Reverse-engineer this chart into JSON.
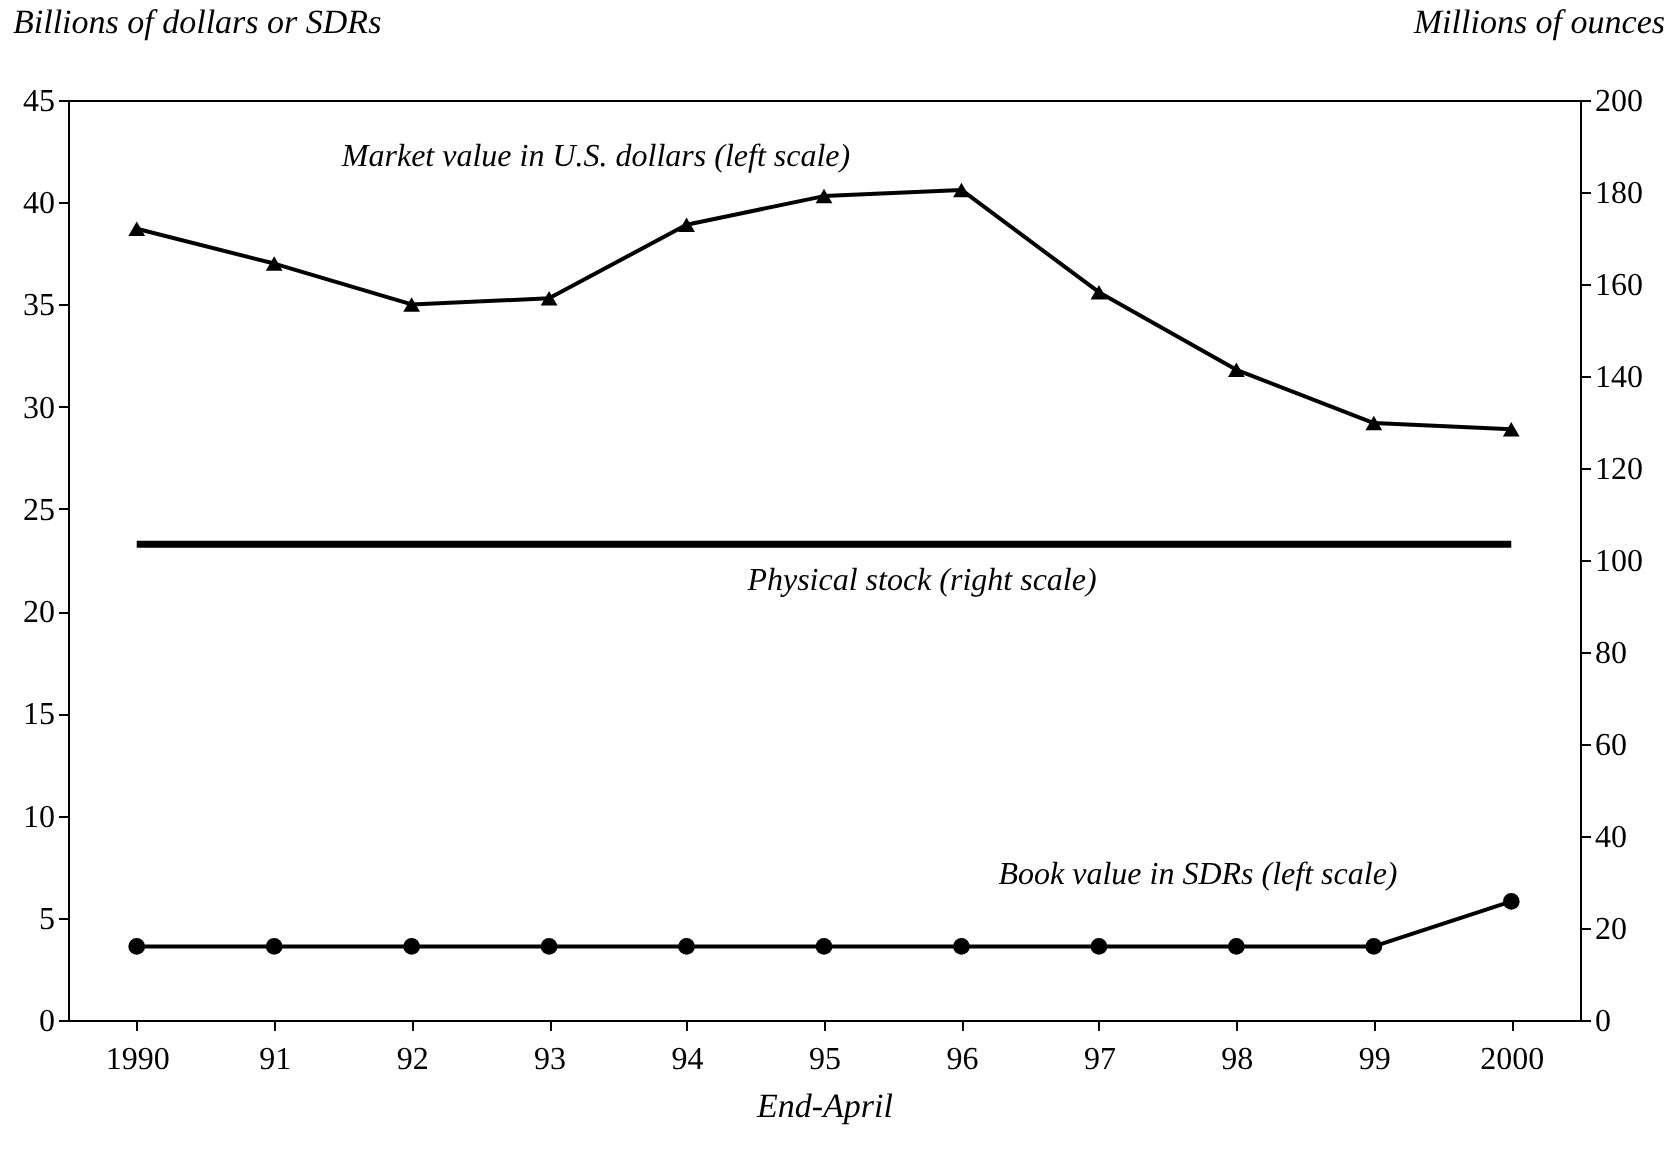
{
  "chart_data": {
    "type": "line",
    "xlabel": "End-April",
    "ylabel": "Billions of dollars or SDRs",
    "y2label": "Millions of ounces",
    "categories": [
      "1990",
      "91",
      "92",
      "93",
      "94",
      "95",
      "96",
      "97",
      "98",
      "99",
      "2000"
    ],
    "series": [
      {
        "color": "#000000",
        "marker": "triangle",
        "values": [
          38.7,
          37.0,
          35.0,
          35.3,
          38.9,
          40.3,
          40.6,
          35.6,
          31.8,
          29.2,
          28.9
        ]
      },
      {
        "color": "#000000",
        "marker": "none",
        "axis": "y2",
        "values": [
          103.4,
          103.4,
          103.4,
          103.4,
          103.4,
          103.4,
          103.4,
          103.4,
          103.4,
          103.4,
          103.4
        ]
      },
      {
        "color": "#000000",
        "marker": "circle",
        "values": [
          3.6,
          3.6,
          3.6,
          3.6,
          3.6,
          3.6,
          3.6,
          3.6,
          3.6,
          3.6,
          5.8
        ]
      }
    ],
    "annotations": [
      "Market value in U.S. dollars (left scale)",
      "Physical stock (right scale)",
      "Book value in SDRs (left scale)"
    ],
    "ylim": [
      0,
      45
    ],
    "yticks": [
      0,
      5,
      10,
      15,
      20,
      25,
      30,
      35,
      40,
      45
    ],
    "y2lim": [
      0,
      200
    ],
    "y2ticks": [
      0,
      20,
      40,
      60,
      80,
      100,
      120,
      140,
      160,
      180,
      200
    ],
    "grid": false,
    "line_style": "solid"
  }
}
